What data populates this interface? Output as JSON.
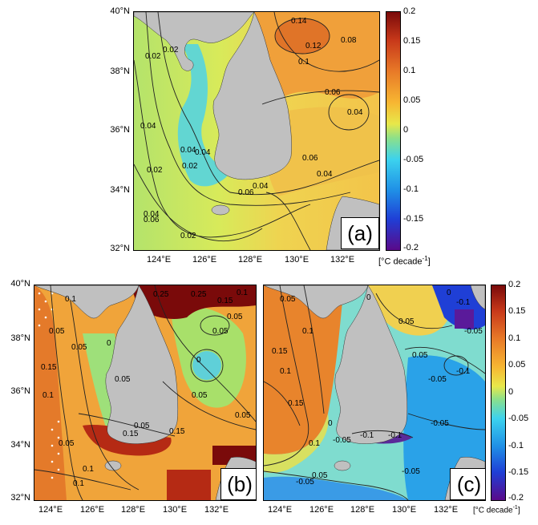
{
  "panels": {
    "a": {
      "label": "(a)",
      "y_ticks": [
        "40°N",
        "38°N",
        "36°N",
        "34°N",
        "32°N"
      ],
      "x_ticks": [
        "124°E",
        "126°E",
        "128°E",
        "130°E",
        "132°E"
      ],
      "contour_labels": [
        "0.02",
        "0.02",
        "0.04",
        "0.02",
        "0.04",
        "0.02",
        "0.04",
        "0.06",
        "0.04",
        "0.06",
        "0.04",
        "0.06",
        "0.02",
        "0.14",
        "0.12",
        "0.1",
        "0.08",
        "0.06",
        "0.04",
        "0.04"
      ]
    },
    "b": {
      "label": "(b)",
      "y_ticks": [
        "40°N",
        "38°N",
        "36°N",
        "34°N",
        "32°N"
      ],
      "x_ticks": [
        "124°E",
        "126°E",
        "128°E",
        "130°E",
        "132°E"
      ],
      "contour_labels": [
        "0.1",
        "0.05",
        "0.15",
        "0.1",
        "0.05",
        "0.1",
        "0.15",
        "0.05",
        "0.1",
        "0.15",
        "0.05",
        "0",
        "0.05",
        "0.25",
        "0.25",
        "0.15",
        "0.1",
        "0.05",
        "0.05",
        "0",
        "0.05",
        "0.05"
      ]
    },
    "c": {
      "label": "(c)",
      "x_ticks": [
        "124°E",
        "126°E",
        "128°E",
        "130°E",
        "132°E"
      ],
      "contour_labels": [
        "0.05",
        "0.15",
        "0.1",
        "0.15",
        "0.1",
        "0.05",
        "0",
        "0.05",
        "0",
        "-0.1",
        "-0.1",
        "-0.05",
        "-0.05",
        "-0.1",
        "-0.05",
        "-0.05",
        "-0.05",
        "-0.1",
        "-0.05",
        "0",
        "0.1",
        "0.05"
      ]
    }
  },
  "colorbar_top": {
    "ticks": [
      "0.2",
      "0.15",
      "0.1",
      "0.05",
      "0",
      "-0.05",
      "-0.1",
      "-0.15",
      "-0.2"
    ],
    "unit_prefix": "[°C decade",
    "unit_exp": "-1",
    "unit_suffix": "]"
  },
  "colorbar_bottom": {
    "ticks": [
      "0.2",
      "0.15",
      "0.1",
      "0.05",
      "0",
      "-0.05",
      "-0.1",
      "-0.15",
      "-0.2"
    ],
    "unit_prefix": "[°C decade",
    "unit_exp": "-1",
    "unit_suffix": "]"
  },
  "colors": {
    "land": "#c0c0c0",
    "cmap": [
      "#5a0a8a",
      "#1f3fd6",
      "#1f8fe6",
      "#3cd2ee",
      "#8ce08a",
      "#e8e84a",
      "#f7b632",
      "#e87a28",
      "#c8391a",
      "#7a0a0a"
    ]
  }
}
